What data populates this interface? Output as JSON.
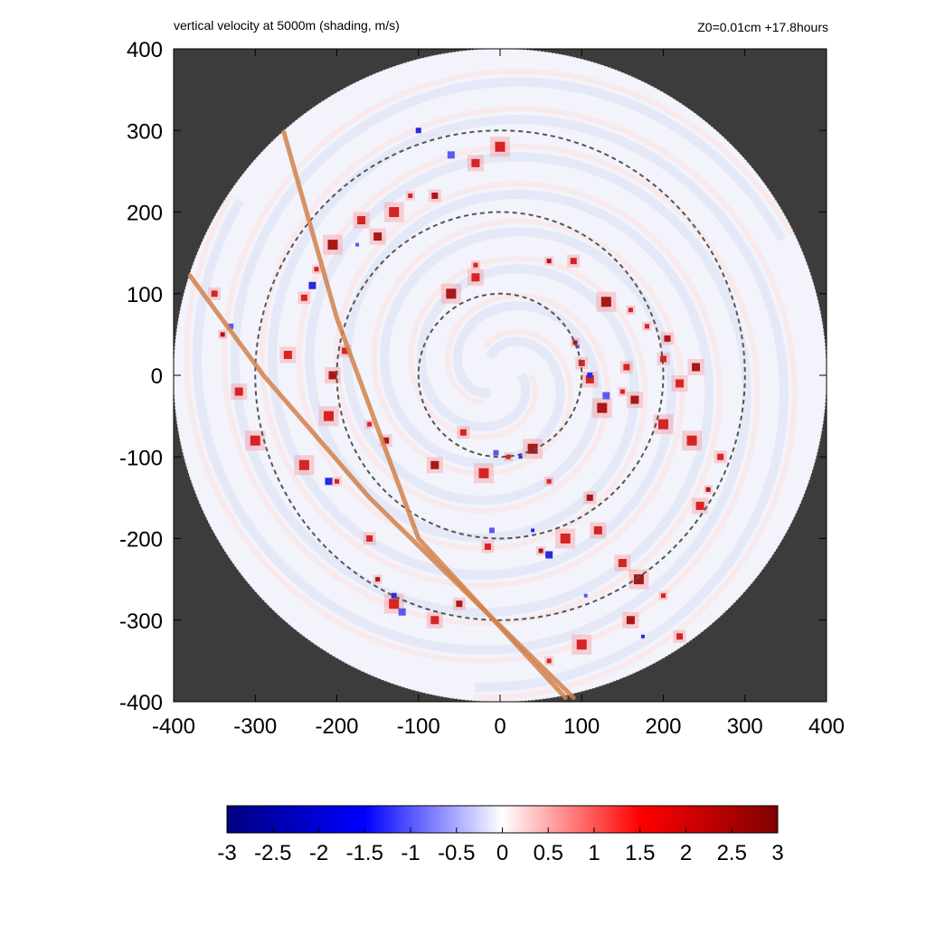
{
  "chart_data": {
    "type": "heatmap",
    "title": "vertical velocity at 5000m (shading, m/s)",
    "subtitle": "Z0=0.01cm  +17.8hours",
    "xlim": [
      -400,
      400
    ],
    "ylim": [
      -400,
      400
    ],
    "x_ticks": [
      "-400",
      "-300",
      "-200",
      "-100",
      "0",
      "100",
      "200",
      "300",
      "400"
    ],
    "y_ticks": [
      "400",
      "300",
      "200",
      "100",
      "0",
      "-100",
      "-200",
      "-300",
      "-400"
    ],
    "domain_radius": 400,
    "range_rings": [
      100,
      200,
      300
    ],
    "colorbar": {
      "min": -3,
      "max": 3,
      "ticks": [
        "-3",
        "-2.5",
        "-2",
        "-1.5",
        "-1",
        "-0.5",
        "0",
        "0.5",
        "1",
        "1.5",
        "2",
        "2.5",
        "3"
      ],
      "colors": [
        "#000080",
        "#0000ff",
        "#ffffff",
        "#ff0000",
        "#800000"
      ]
    },
    "tracks": [
      {
        "points": [
          [
            -265,
            298
          ],
          [
            -200,
            70
          ],
          [
            -100,
            -200
          ],
          [
            80,
            -395
          ]
        ]
      },
      {
        "points": [
          [
            -380,
            122
          ],
          [
            -290,
            0
          ],
          [
            -160,
            -150
          ],
          [
            90,
            -395
          ]
        ]
      }
    ],
    "updraft_cells": [
      [
        92,
        40
      ],
      [
        100,
        15
      ],
      [
        110,
        -5
      ],
      [
        125,
        -40
      ],
      [
        150,
        -20
      ],
      [
        155,
        10
      ],
      [
        165,
        -30
      ],
      [
        200,
        -60
      ],
      [
        180,
        60
      ],
      [
        205,
        45
      ],
      [
        220,
        -10
      ],
      [
        235,
        -80
      ],
      [
        255,
        -140
      ],
      [
        270,
        -100
      ],
      [
        245,
        -160
      ],
      [
        40,
        -90
      ],
      [
        10,
        -100
      ],
      [
        -45,
        -70
      ],
      [
        -80,
        -110
      ],
      [
        -20,
        -120
      ],
      [
        60,
        -130
      ],
      [
        110,
        -150
      ],
      [
        120,
        -190
      ],
      [
        80,
        -200
      ],
      [
        50,
        -215
      ],
      [
        -15,
        -210
      ],
      [
        150,
        -230
      ],
      [
        170,
        -250
      ],
      [
        200,
        -270
      ],
      [
        220,
        -320
      ],
      [
        160,
        -300
      ],
      [
        100,
        -330
      ],
      [
        60,
        -350
      ],
      [
        -50,
        -280
      ],
      [
        -80,
        -300
      ],
      [
        -130,
        -280
      ],
      [
        -150,
        -250
      ],
      [
        -160,
        -200
      ],
      [
        -170,
        190
      ],
      [
        -205,
        160
      ],
      [
        -225,
        130
      ],
      [
        -240,
        95
      ],
      [
        -150,
        170
      ],
      [
        -130,
        200
      ],
      [
        -110,
        220
      ],
      [
        -80,
        220
      ],
      [
        -30,
        260
      ],
      [
        0,
        280
      ],
      [
        60,
        140
      ],
      [
        90,
        140
      ],
      [
        -30,
        120
      ],
      [
        -60,
        100
      ],
      [
        -30,
        135
      ],
      [
        -190,
        30
      ],
      [
        -205,
        0
      ],
      [
        -210,
        -50
      ],
      [
        -160,
        -60
      ],
      [
        -140,
        -80
      ],
      [
        -260,
        25
      ],
      [
        -300,
        -80
      ],
      [
        -340,
        50
      ],
      [
        -350,
        100
      ],
      [
        -320,
        -20
      ],
      [
        130,
        90
      ],
      [
        160,
        80
      ],
      [
        200,
        20
      ],
      [
        240,
        10
      ],
      [
        -240,
        -110
      ],
      [
        -200,
        -130
      ]
    ],
    "downdraft_cells": [
      [
        95,
        35
      ],
      [
        110,
        0
      ],
      [
        130,
        -25
      ],
      [
        25,
        -100
      ],
      [
        -5,
        -95
      ],
      [
        -230,
        110
      ],
      [
        -175,
        160
      ],
      [
        -130,
        -270
      ],
      [
        -120,
        -290
      ],
      [
        40,
        -190
      ],
      [
        -10,
        -190
      ],
      [
        60,
        -220
      ],
      [
        105,
        -270
      ],
      [
        -100,
        300
      ],
      [
        -60,
        270
      ],
      [
        175,
        -320
      ],
      [
        -330,
        60
      ],
      [
        -210,
        -130
      ]
    ]
  }
}
